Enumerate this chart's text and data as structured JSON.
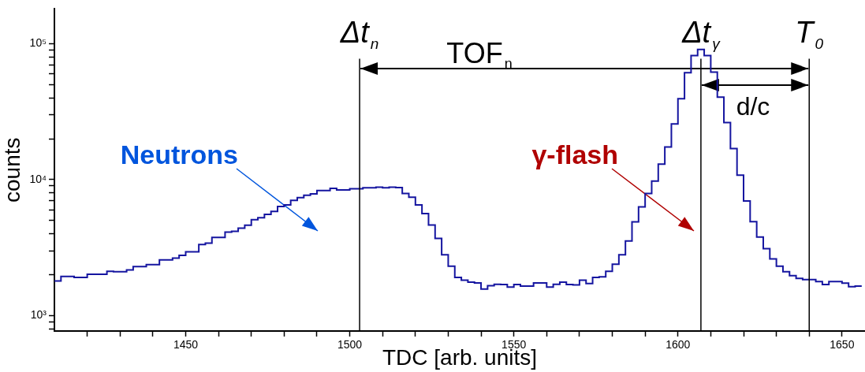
{
  "chart_data": {
    "type": "histogram",
    "xlabel": "TDC [arb. units]",
    "ylabel": "counts",
    "color": "#1515a0",
    "log": "y",
    "xlim": [
      1410,
      1657
    ],
    "ylim": [
      770,
      180000
    ],
    "bins": [
      1410,
      1412,
      1414,
      1416,
      1418,
      1420,
      1422,
      1424,
      1426,
      1428,
      1430,
      1432,
      1434,
      1436,
      1438,
      1440,
      1442,
      1444,
      1446,
      1448,
      1450,
      1452,
      1454,
      1456,
      1458,
      1460,
      1462,
      1464,
      1466,
      1468,
      1470,
      1472,
      1474,
      1476,
      1478,
      1480,
      1482,
      1484,
      1486,
      1488,
      1490,
      1492,
      1494,
      1496,
      1498,
      1500,
      1502,
      1504,
      1506,
      1508,
      1510,
      1512,
      1514,
      1516,
      1518,
      1520,
      1522,
      1524,
      1526,
      1528,
      1530,
      1532,
      1534,
      1536,
      1538,
      1540,
      1542,
      1544,
      1546,
      1548,
      1550,
      1552,
      1554,
      1556,
      1558,
      1560,
      1562,
      1564,
      1566,
      1568,
      1570,
      1572,
      1574,
      1576,
      1578,
      1580,
      1582,
      1584,
      1586,
      1588,
      1590,
      1592,
      1594,
      1596,
      1598,
      1600,
      1602,
      1604,
      1606,
      1608,
      1610,
      1612,
      1614,
      1616,
      1618,
      1620,
      1622,
      1624,
      1626,
      1628,
      1630,
      1632,
      1634,
      1636,
      1638,
      1640,
      1642,
      1644,
      1646,
      1648,
      1650,
      1652,
      1654,
      1656
    ],
    "values": [
      1800,
      1940,
      1940,
      1910,
      1910,
      2010,
      2010,
      2010,
      2120,
      2100,
      2100,
      2170,
      2290,
      2290,
      2370,
      2370,
      2570,
      2570,
      2650,
      2770,
      2950,
      2950,
      3330,
      3410,
      3760,
      3760,
      4110,
      4170,
      4400,
      4620,
      5070,
      5240,
      5550,
      5830,
      6350,
      6520,
      7030,
      7370,
      7670,
      7860,
      8320,
      8320,
      8640,
      8410,
      8410,
      8560,
      8560,
      8700,
      8700,
      8810,
      8700,
      8810,
      8750,
      7910,
      7430,
      6520,
      5620,
      4640,
      3700,
      2800,
      2310,
      1910,
      1820,
      1760,
      1740,
      1570,
      1660,
      1700,
      1690,
      1620,
      1690,
      1650,
      1650,
      1740,
      1740,
      1620,
      1700,
      1760,
      1690,
      1680,
      1820,
      1720,
      1910,
      1930,
      2120,
      2390,
      2800,
      3540,
      4890,
      6300,
      7910,
      9750,
      13000,
      17400,
      25700,
      39400,
      61100,
      81800,
      90800,
      81800,
      61700,
      40400,
      26300,
      16900,
      10800,
      6970,
      4910,
      3780,
      3110,
      2610,
      2310,
      2100,
      1970,
      1880,
      1840,
      1840,
      1780,
      1690,
      1780,
      1780,
      1730,
      1630,
      1650
    ],
    "xticks": [
      {
        "value": 1420,
        "label": null
      },
      {
        "value": 1430,
        "label": null
      },
      {
        "value": 1440,
        "label": null
      },
      1450,
      {
        "value": 1460,
        "label": null
      },
      {
        "value": 1470,
        "label": null
      },
      {
        "value": 1480,
        "label": null
      },
      {
        "value": 1490,
        "label": null
      },
      1500,
      {
        "value": 1510,
        "label": null
      },
      {
        "value": 1520,
        "label": null
      },
      {
        "value": 1530,
        "label": null
      },
      {
        "value": 1540,
        "label": null
      },
      1550,
      {
        "value": 1560,
        "label": null
      },
      {
        "value": 1570,
        "label": null
      },
      {
        "value": 1580,
        "label": null
      },
      {
        "value": 1590,
        "label": null
      },
      1600,
      {
        "value": 1610,
        "label": null
      },
      {
        "value": 1620,
        "label": null
      },
      {
        "value": 1630,
        "label": null
      },
      {
        "value": 1640,
        "label": null
      },
      1650
    ],
    "yticks": [
      {
        "value": 800,
        "label": null
      },
      {
        "value": 900,
        "label": null
      },
      {
        "value": 1000,
        "label": "10³"
      },
      {
        "value": 2000,
        "label": null
      },
      {
        "value": 3000,
        "label": null
      },
      {
        "value": 4000,
        "label": null
      },
      {
        "value": 5000,
        "label": null
      },
      {
        "value": 6000,
        "label": null
      },
      {
        "value": 7000,
        "label": null
      },
      {
        "value": 8000,
        "label": null
      },
      {
        "value": 9000,
        "label": null
      },
      {
        "value": 10000,
        "label": "10⁴"
      },
      {
        "value": 20000,
        "label": null
      },
      {
        "value": 30000,
        "label": null
      },
      {
        "value": 40000,
        "label": null
      },
      {
        "value": 50000,
        "label": null
      },
      {
        "value": 60000,
        "label": null
      },
      {
        "value": 70000,
        "label": null
      },
      {
        "value": 80000,
        "label": null
      },
      {
        "value": 90000,
        "label": null
      },
      {
        "value": 100000,
        "label": "10⁵"
      }
    ],
    "ref_lines": [
      {
        "axis": "x",
        "value": 1503,
        "label": "Δt$_{n}$",
        "color": "#000000"
      },
      {
        "axis": "x",
        "value": 1607,
        "label": "Δt$_{γ}$",
        "color": "#000000"
      },
      {
        "axis": "x",
        "value": 1640,
        "label": "T$_{0}$",
        "color": "#000000"
      }
    ],
    "annotations": [
      "TOF$_{n}$",
      "d/c",
      "Neutrons",
      "γ-flash"
    ]
  }
}
